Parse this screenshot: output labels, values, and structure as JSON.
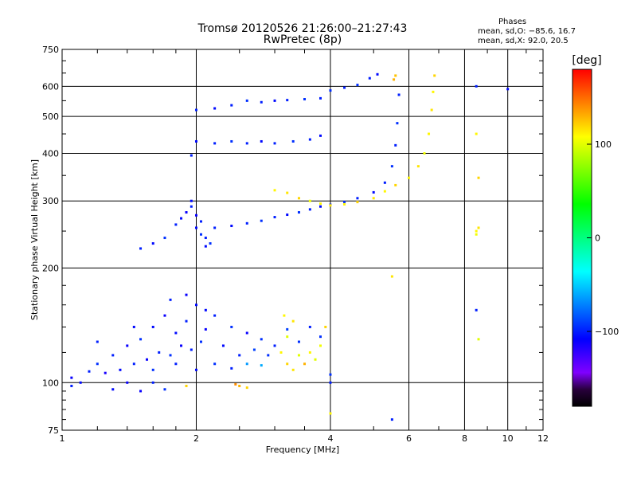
{
  "header": {
    "title_line1": "Tromsø 20120526 21:26:00–21:27:43",
    "title_line2": "RwPretec (8p)"
  },
  "stats": {
    "heading": "Phases",
    "o_line": "mean, sd,O: −85.6, 16.7",
    "x_line": "mean, sd,X:  92.0, 20.5"
  },
  "colorbar": {
    "title": "[deg]",
    "ticks": [
      "100",
      "0",
      "−100"
    ],
    "tick_values": [
      100,
      0,
      -100
    ],
    "range": [
      -180,
      180
    ]
  },
  "chart_data": {
    "type": "scatter",
    "xlabel": "Frequency [MHz]",
    "ylabel": "Stationary phase Virtual Height [km]",
    "xscale": "log",
    "yscale": "log",
    "xlim": [
      1,
      12
    ],
    "ylim": [
      75,
      750
    ],
    "xticks": [
      1,
      2,
      4,
      6,
      8,
      10,
      12
    ],
    "xtick_labels": [
      "1",
      "2",
      "4",
      "6",
      "8",
      "10",
      "12"
    ],
    "yticks": [
      75,
      100,
      200,
      300,
      400,
      500,
      600,
      750
    ],
    "ytick_labels": [
      "75",
      "100",
      "200",
      "300",
      "400",
      "500",
      "600",
      "750"
    ],
    "grid": true,
    "color_dimension": "phase [deg]",
    "series": [
      {
        "points": [
          [
            1.05,
            103,
            -110
          ],
          [
            1.1,
            100,
            -105
          ],
          [
            1.15,
            107,
            -100
          ],
          [
            1.2,
            112,
            -95
          ],
          [
            1.25,
            106,
            -115
          ],
          [
            1.3,
            118,
            -100
          ],
          [
            1.35,
            108,
            -105
          ],
          [
            1.4,
            125,
            -110
          ],
          [
            1.45,
            112,
            -100
          ],
          [
            1.5,
            130,
            -95
          ],
          [
            1.55,
            115,
            -110
          ],
          [
            1.6,
            140,
            -105
          ],
          [
            1.65,
            120,
            -100
          ],
          [
            1.7,
            150,
            -110
          ],
          [
            1.75,
            118,
            -95
          ],
          [
            1.8,
            135,
            -105
          ],
          [
            1.85,
            125,
            -110
          ],
          [
            1.9,
            145,
            -100
          ],
          [
            1.95,
            122,
            -100
          ],
          [
            2.0,
            160,
            -105
          ],
          [
            2.05,
            128,
            -95
          ],
          [
            2.1,
            138,
            -110
          ],
          [
            2.2,
            150,
            -100
          ],
          [
            2.3,
            125,
            -105
          ],
          [
            2.4,
            140,
            -95
          ],
          [
            2.5,
            118,
            -100
          ],
          [
            2.6,
            135,
            -110
          ],
          [
            2.7,
            122,
            -90
          ],
          [
            2.8,
            130,
            -95
          ],
          [
            3.0,
            125,
            -100
          ],
          [
            3.2,
            138,
            -90
          ],
          [
            3.4,
            128,
            -95
          ],
          [
            3.6,
            140,
            -100
          ],
          [
            3.8,
            132,
            -95
          ],
          [
            1.05,
            98,
            -100
          ],
          [
            1.3,
            96,
            -105
          ],
          [
            1.5,
            95,
            -110
          ],
          [
            1.6,
            100,
            -100
          ],
          [
            1.7,
            96,
            -95
          ],
          [
            1.2,
            128,
            -100
          ],
          [
            1.45,
            140,
            -105
          ],
          [
            1.75,
            165,
            -100
          ],
          [
            1.9,
            170,
            -110
          ],
          [
            2.1,
            155,
            -105
          ],
          [
            1.4,
            100,
            -110
          ],
          [
            1.6,
            108,
            -95
          ],
          [
            1.8,
            112,
            -100
          ],
          [
            2.0,
            108,
            -105
          ],
          [
            2.2,
            112,
            -95
          ],
          [
            2.4,
            109,
            -100
          ],
          [
            2.6,
            112,
            -65
          ],
          [
            2.8,
            111,
            -60
          ],
          [
            2.9,
            118,
            -95
          ],
          [
            2.5,
            98,
            130
          ],
          [
            2.6,
            97,
            120
          ],
          [
            2.45,
            99,
            140
          ],
          [
            1.9,
            98,
            120
          ],
          [
            3.1,
            120,
            110
          ],
          [
            3.2,
            112,
            120
          ],
          [
            3.3,
            108,
            115
          ],
          [
            3.4,
            118,
            100
          ],
          [
            3.5,
            112,
            130
          ],
          [
            3.6,
            120,
            110
          ],
          [
            3.7,
            115,
            100
          ],
          [
            3.8,
            125,
            105
          ],
          [
            3.9,
            140,
            120
          ],
          [
            3.3,
            145,
            115
          ],
          [
            3.2,
            132,
            100
          ],
          [
            3.15,
            150,
            110
          ],
          [
            1.5,
            225,
            -100
          ],
          [
            1.6,
            232,
            -105
          ],
          [
            1.7,
            240,
            -95
          ],
          [
            1.8,
            260,
            -100
          ],
          [
            1.85,
            270,
            -105
          ],
          [
            1.9,
            280,
            -110
          ],
          [
            1.95,
            290,
            -100
          ],
          [
            2.0,
            255,
            -105
          ],
          [
            2.05,
            245,
            -95
          ],
          [
            2.1,
            240,
            -100
          ],
          [
            1.95,
            300,
            -105
          ],
          [
            2.0,
            275,
            -110
          ],
          [
            2.05,
            265,
            -100
          ],
          [
            2.1,
            228,
            -105
          ],
          [
            2.15,
            232,
            -95
          ],
          [
            2.2,
            255,
            -100
          ],
          [
            2.4,
            258,
            -105
          ],
          [
            2.6,
            262,
            -100
          ],
          [
            2.8,
            266,
            -95
          ],
          [
            3.0,
            272,
            -100
          ],
          [
            3.2,
            276,
            -105
          ],
          [
            3.4,
            280,
            -95
          ],
          [
            3.6,
            285,
            -100
          ],
          [
            3.8,
            290,
            -105
          ],
          [
            4.0,
            293,
            -100
          ],
          [
            4.3,
            298,
            -95
          ],
          [
            4.6,
            305,
            -100
          ],
          [
            5.0,
            316,
            -105
          ],
          [
            5.3,
            335,
            -100
          ],
          [
            5.5,
            370,
            -95
          ],
          [
            5.6,
            420,
            -100
          ],
          [
            5.65,
            480,
            -95
          ],
          [
            5.7,
            570,
            -100
          ],
          [
            1.95,
            395,
            -100
          ],
          [
            2.0,
            430,
            -105
          ],
          [
            2.2,
            425,
            -100
          ],
          [
            2.4,
            430,
            -95
          ],
          [
            2.6,
            425,
            -100
          ],
          [
            2.8,
            430,
            -105
          ],
          [
            3.0,
            425,
            -100
          ],
          [
            3.3,
            430,
            -95
          ],
          [
            3.6,
            435,
            -100
          ],
          [
            3.8,
            445,
            -105
          ],
          [
            2.0,
            520,
            -100
          ],
          [
            2.2,
            525,
            -105
          ],
          [
            2.4,
            535,
            -100
          ],
          [
            2.6,
            550,
            -95
          ],
          [
            2.8,
            545,
            -100
          ],
          [
            3.0,
            550,
            -105
          ],
          [
            3.2,
            552,
            -100
          ],
          [
            3.5,
            555,
            -95
          ],
          [
            3.8,
            558,
            -100
          ],
          [
            4.0,
            585,
            -95
          ],
          [
            4.3,
            595,
            -100
          ],
          [
            4.6,
            605,
            -95
          ],
          [
            4.9,
            630,
            -100
          ],
          [
            5.1,
            645,
            -105
          ],
          [
            3.0,
            320,
            110
          ],
          [
            3.2,
            315,
            115
          ],
          [
            3.4,
            305,
            120
          ],
          [
            3.6,
            300,
            105
          ],
          [
            3.8,
            295,
            110
          ],
          [
            4.0,
            292,
            115
          ],
          [
            4.3,
            294,
            110
          ],
          [
            4.6,
            298,
            120
          ],
          [
            5.0,
            305,
            115
          ],
          [
            5.3,
            318,
            110
          ],
          [
            5.6,
            330,
            120
          ],
          [
            6.0,
            345,
            110
          ],
          [
            6.3,
            370,
            115
          ],
          [
            6.5,
            400,
            105
          ],
          [
            6.65,
            450,
            110
          ],
          [
            6.75,
            520,
            115
          ],
          [
            6.8,
            580,
            110
          ],
          [
            6.85,
            640,
            120
          ],
          [
            5.6,
            640,
            125
          ],
          [
            5.55,
            625,
            130
          ],
          [
            8.5,
            600,
            -100
          ],
          [
            10.0,
            590,
            -105
          ],
          [
            8.5,
            450,
            110
          ],
          [
            8.6,
            345,
            120
          ],
          [
            8.6,
            255,
            115
          ],
          [
            8.5,
            250,
            110
          ],
          [
            8.5,
            245,
            105
          ],
          [
            8.6,
            130,
            100
          ],
          [
            8.5,
            155,
            -100
          ],
          [
            4.0,
            100,
            -100
          ],
          [
            4.0,
            83,
            110
          ],
          [
            4.0,
            105,
            -95
          ],
          [
            5.5,
            190,
            115
          ],
          [
            5.5,
            80,
            -100
          ]
        ]
      }
    ]
  }
}
